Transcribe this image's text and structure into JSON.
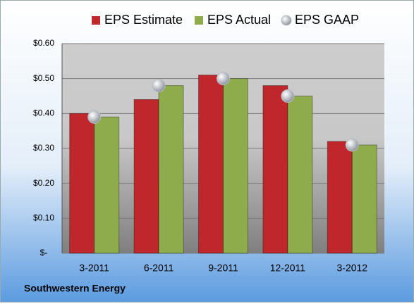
{
  "chart_data": {
    "type": "bar",
    "categories": [
      "3-2011",
      "6-2011",
      "9-2011",
      "12-2011",
      "3-2012"
    ],
    "series": [
      {
        "name": "EPS Estimate",
        "color": "#c0272d",
        "values": [
          0.4,
          0.44,
          0.51,
          0.48,
          0.32
        ]
      },
      {
        "name": "EPS Actual",
        "color": "#8fac4c",
        "values": [
          0.39,
          0.48,
          0.5,
          0.45,
          0.31
        ]
      },
      {
        "name": "EPS GAAP",
        "type": "scatter",
        "color": "#b8bcc4",
        "values": [
          0.39,
          0.48,
          0.5,
          0.45,
          0.31
        ]
      }
    ],
    "ylim": [
      0,
      0.6
    ],
    "yticks": [
      {
        "value": 0,
        "label": "$-"
      },
      {
        "value": 0.1,
        "label": "$0.10"
      },
      {
        "value": 0.2,
        "label": "$0.20"
      },
      {
        "value": 0.3,
        "label": "$0.30"
      },
      {
        "value": 0.4,
        "label": "$0.40"
      },
      {
        "value": 0.5,
        "label": "$0.50"
      },
      {
        "value": 0.6,
        "label": "$0.60"
      }
    ],
    "grid": true,
    "legend": "top",
    "source": "Southwestern Energy"
  }
}
